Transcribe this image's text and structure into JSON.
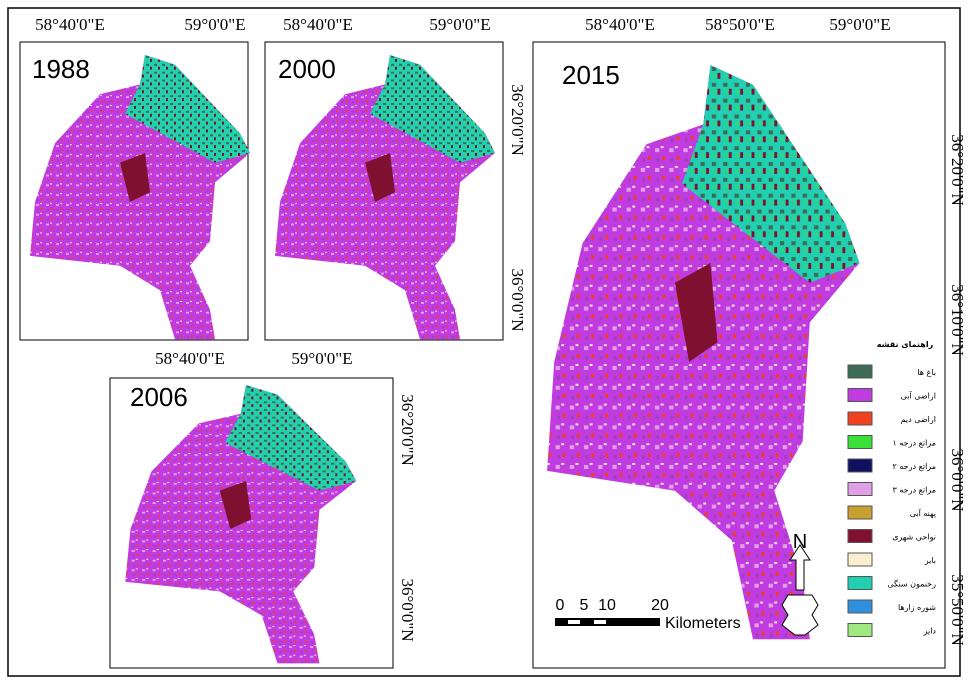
{
  "panels": [
    {
      "year": "1988",
      "top_labels": [
        "58°40'0\"E",
        "59°0'0\"E"
      ]
    },
    {
      "year": "2000",
      "top_labels": [
        "58°40'0\"E",
        "59°0'0\"E"
      ],
      "right_labels": [
        "36°20'0\"N",
        "36°0'0\"N"
      ]
    },
    {
      "year": "2006",
      "top_labels": [
        "58°40'0\"E",
        "59°0'0\"E"
      ],
      "right_labels": [
        "36°20'0\"N",
        "36°0'0\"N"
      ]
    },
    {
      "year": "2015",
      "top_labels": [
        "58°40'0\"E",
        "58°50'0\"E",
        "59°0'0\"E"
      ],
      "right_labels": [
        "36°20'0\"N",
        "36°10'0\"N",
        "36°0'0\"N",
        "35°50'0\"N"
      ]
    }
  ],
  "legend": {
    "title": "راهنمای نقشه",
    "items": [
      {
        "label": "باغ ها",
        "color": "#3e6b55"
      },
      {
        "label": "اراضی آبی",
        "color": "#c13ce0"
      },
      {
        "label": "اراضی دیم",
        "color": "#f04020"
      },
      {
        "label": "مراتع درجه ۱",
        "color": "#38e038"
      },
      {
        "label": "مراتع درجه ۲",
        "color": "#101060"
      },
      {
        "label": "مراتع درجه ۳",
        "color": "#e0a0e8"
      },
      {
        "label": "پهنه آبی",
        "color": "#c8a030"
      },
      {
        "label": "نواحی شهری",
        "color": "#801030"
      },
      {
        "label": "بایر",
        "color": "#fbeed0"
      },
      {
        "label": "رخنمون سنگی",
        "color": "#20d0b0"
      },
      {
        "label": "شوره زارها",
        "color": "#3090e0"
      },
      {
        "label": "دایر",
        "color": "#a0e880"
      }
    ]
  },
  "scale": {
    "ticks": [
      "0",
      "5",
      "10",
      "20"
    ],
    "unit": "Kilometers"
  },
  "north": "N"
}
